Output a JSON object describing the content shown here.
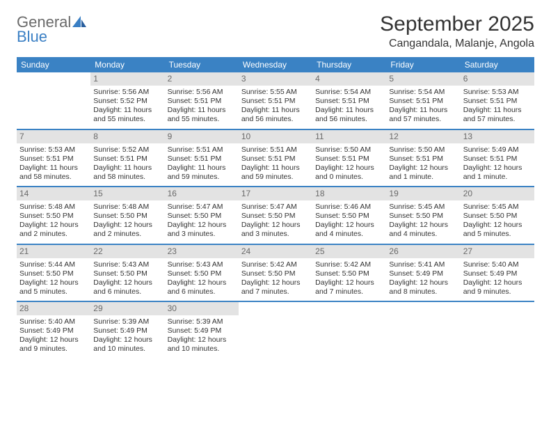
{
  "logo": {
    "word1": "General",
    "word2": "Blue"
  },
  "title": "September 2025",
  "location": "Cangandala, Malanje, Angola",
  "colors": {
    "header_bg": "#3a82c4",
    "header_text": "#ffffff",
    "daynum_bg": "#e3e3e3",
    "daynum_text": "#6a6a6a",
    "body_text": "#333333",
    "rule": "#3a82c4",
    "logo_gray": "#6a6a6a",
    "logo_blue": "#3a7fc4"
  },
  "weekdays": [
    "Sunday",
    "Monday",
    "Tuesday",
    "Wednesday",
    "Thursday",
    "Friday",
    "Saturday"
  ],
  "weeks": [
    [
      null,
      {
        "n": "1",
        "sr": "5:56 AM",
        "ss": "5:52 PM",
        "dl": "11 hours and 55 minutes."
      },
      {
        "n": "2",
        "sr": "5:56 AM",
        "ss": "5:51 PM",
        "dl": "11 hours and 55 minutes."
      },
      {
        "n": "3",
        "sr": "5:55 AM",
        "ss": "5:51 PM",
        "dl": "11 hours and 56 minutes."
      },
      {
        "n": "4",
        "sr": "5:54 AM",
        "ss": "5:51 PM",
        "dl": "11 hours and 56 minutes."
      },
      {
        "n": "5",
        "sr": "5:54 AM",
        "ss": "5:51 PM",
        "dl": "11 hours and 57 minutes."
      },
      {
        "n": "6",
        "sr": "5:53 AM",
        "ss": "5:51 PM",
        "dl": "11 hours and 57 minutes."
      }
    ],
    [
      {
        "n": "7",
        "sr": "5:53 AM",
        "ss": "5:51 PM",
        "dl": "11 hours and 58 minutes."
      },
      {
        "n": "8",
        "sr": "5:52 AM",
        "ss": "5:51 PM",
        "dl": "11 hours and 58 minutes."
      },
      {
        "n": "9",
        "sr": "5:51 AM",
        "ss": "5:51 PM",
        "dl": "11 hours and 59 minutes."
      },
      {
        "n": "10",
        "sr": "5:51 AM",
        "ss": "5:51 PM",
        "dl": "11 hours and 59 minutes."
      },
      {
        "n": "11",
        "sr": "5:50 AM",
        "ss": "5:51 PM",
        "dl": "12 hours and 0 minutes."
      },
      {
        "n": "12",
        "sr": "5:50 AM",
        "ss": "5:51 PM",
        "dl": "12 hours and 1 minute."
      },
      {
        "n": "13",
        "sr": "5:49 AM",
        "ss": "5:51 PM",
        "dl": "12 hours and 1 minute."
      }
    ],
    [
      {
        "n": "14",
        "sr": "5:48 AM",
        "ss": "5:50 PM",
        "dl": "12 hours and 2 minutes."
      },
      {
        "n": "15",
        "sr": "5:48 AM",
        "ss": "5:50 PM",
        "dl": "12 hours and 2 minutes."
      },
      {
        "n": "16",
        "sr": "5:47 AM",
        "ss": "5:50 PM",
        "dl": "12 hours and 3 minutes."
      },
      {
        "n": "17",
        "sr": "5:47 AM",
        "ss": "5:50 PM",
        "dl": "12 hours and 3 minutes."
      },
      {
        "n": "18",
        "sr": "5:46 AM",
        "ss": "5:50 PM",
        "dl": "12 hours and 4 minutes."
      },
      {
        "n": "19",
        "sr": "5:45 AM",
        "ss": "5:50 PM",
        "dl": "12 hours and 4 minutes."
      },
      {
        "n": "20",
        "sr": "5:45 AM",
        "ss": "5:50 PM",
        "dl": "12 hours and 5 minutes."
      }
    ],
    [
      {
        "n": "21",
        "sr": "5:44 AM",
        "ss": "5:50 PM",
        "dl": "12 hours and 5 minutes."
      },
      {
        "n": "22",
        "sr": "5:43 AM",
        "ss": "5:50 PM",
        "dl": "12 hours and 6 minutes."
      },
      {
        "n": "23",
        "sr": "5:43 AM",
        "ss": "5:50 PM",
        "dl": "12 hours and 6 minutes."
      },
      {
        "n": "24",
        "sr": "5:42 AM",
        "ss": "5:50 PM",
        "dl": "12 hours and 7 minutes."
      },
      {
        "n": "25",
        "sr": "5:42 AM",
        "ss": "5:50 PM",
        "dl": "12 hours and 7 minutes."
      },
      {
        "n": "26",
        "sr": "5:41 AM",
        "ss": "5:49 PM",
        "dl": "12 hours and 8 minutes."
      },
      {
        "n": "27",
        "sr": "5:40 AM",
        "ss": "5:49 PM",
        "dl": "12 hours and 9 minutes."
      }
    ],
    [
      {
        "n": "28",
        "sr": "5:40 AM",
        "ss": "5:49 PM",
        "dl": "12 hours and 9 minutes."
      },
      {
        "n": "29",
        "sr": "5:39 AM",
        "ss": "5:49 PM",
        "dl": "12 hours and 10 minutes."
      },
      {
        "n": "30",
        "sr": "5:39 AM",
        "ss": "5:49 PM",
        "dl": "12 hours and 10 minutes."
      },
      null,
      null,
      null,
      null
    ]
  ],
  "labels": {
    "sunrise": "Sunrise:",
    "sunset": "Sunset:",
    "daylight": "Daylight:"
  }
}
